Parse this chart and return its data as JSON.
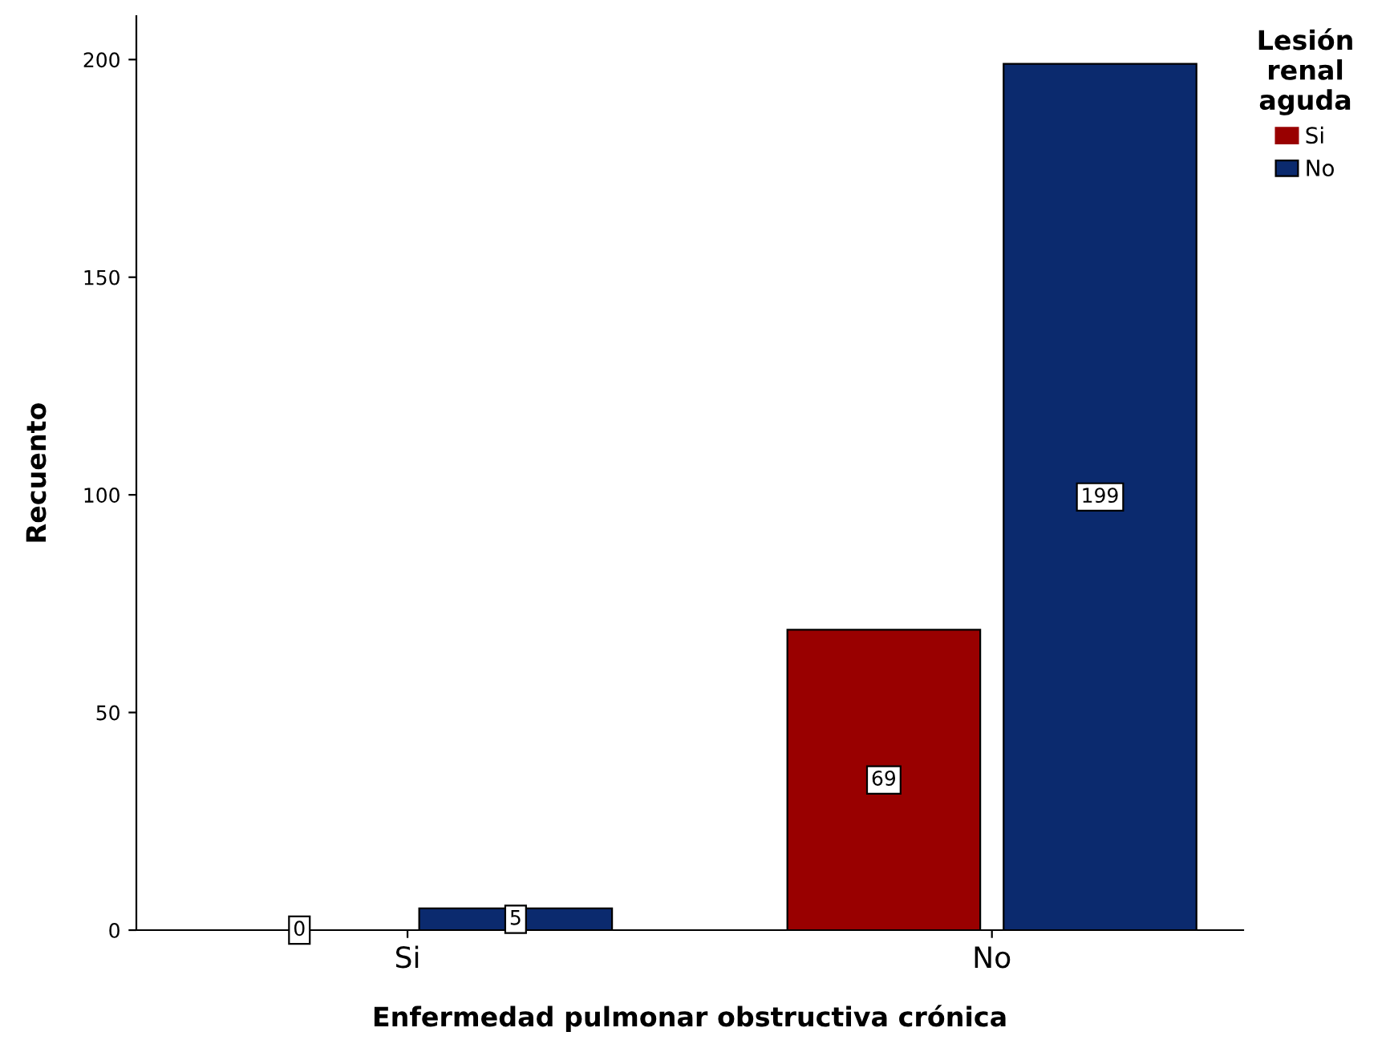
{
  "chart_data": {
    "type": "bar",
    "xlabel": "Enfermedad pulmonar obstructiva crónica",
    "ylabel": "Recuento",
    "legend_title": "Lesión\nrenal\naguda",
    "categories": [
      "Si",
      "No"
    ],
    "series": [
      {
        "name": "Si",
        "color": "#990000",
        "values": [
          0,
          69
        ]
      },
      {
        "name": "No",
        "color": "#0b2a6e",
        "values": [
          5,
          199
        ]
      }
    ],
    "ylim": [
      0,
      210
    ],
    "yticks": [
      0,
      50,
      100,
      150,
      200
    ],
    "grid": false,
    "legend": "top right",
    "data_labels": true
  }
}
